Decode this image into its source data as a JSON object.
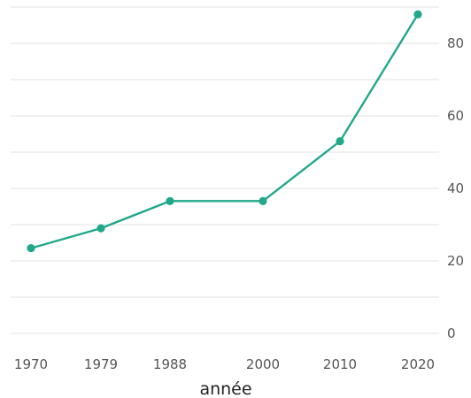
{
  "chart_data": {
    "type": "line",
    "title": "",
    "xlabel": "année",
    "ylabel": "",
    "x": [
      1970,
      1979,
      1988,
      2000,
      2010,
      2020
    ],
    "x_tick_labels": [
      "1970",
      "1979",
      "1988",
      "2000",
      "2010",
      "2020"
    ],
    "y_ticks": [
      0,
      20,
      40,
      60,
      80
    ],
    "y_tick_labels": [
      "0",
      "20",
      "40",
      "60",
      "80"
    ],
    "ylim": [
      0,
      90
    ],
    "y_axis_side": "right",
    "grid": true,
    "series": [
      {
        "values": [
          23.5,
          29,
          36.5,
          36.5,
          53,
          88
        ],
        "color": "#20a88a"
      }
    ]
  },
  "colors": {
    "grid": "#ebebeb",
    "tick_text": "#555555",
    "axis_title": "#222222"
  }
}
